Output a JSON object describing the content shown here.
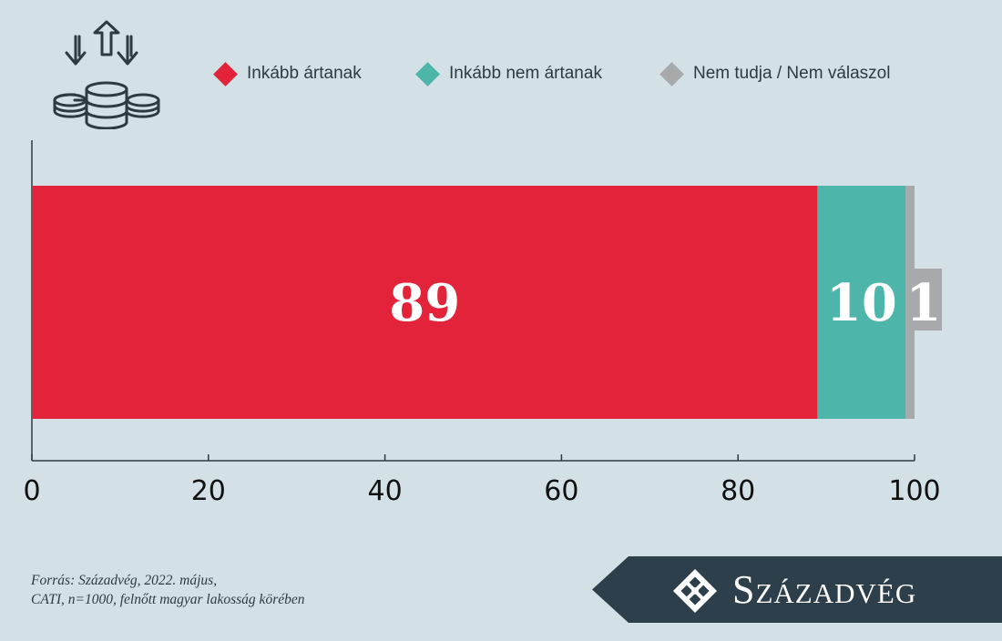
{
  "chart_data": {
    "type": "bar",
    "orientation": "horizontal",
    "stacked": true,
    "series": [
      {
        "name": "Inkább ártanak",
        "values": [
          89
        ],
        "color": "#e32339",
        "label": "89"
      },
      {
        "name": "Inkább nem ártanak",
        "values": [
          10
        ],
        "color": "#4db5a9",
        "label": "10"
      },
      {
        "name": "Nem tudja / Nem válaszol",
        "values": [
          1
        ],
        "color": "#a7a9ab",
        "label": "1"
      }
    ],
    "xlim": [
      0,
      100
    ],
    "xticks": [
      "0",
      "20",
      "40",
      "60",
      "80",
      "100"
    ],
    "legend_position": "top",
    "grid": false
  },
  "header_icon": "money-flow-icon",
  "source": {
    "line1": "Forrás: Századvég, 2022. május,",
    "line2": "CATI, n=1000, felnőtt magyar lakosság körében"
  },
  "brand": {
    "name": "Századvég",
    "logo_icon": "szazadveg-logo-icon",
    "background": "#2c3f4a"
  },
  "colors": {
    "background": "#d3e1e6",
    "axis": "#2d3a42"
  }
}
